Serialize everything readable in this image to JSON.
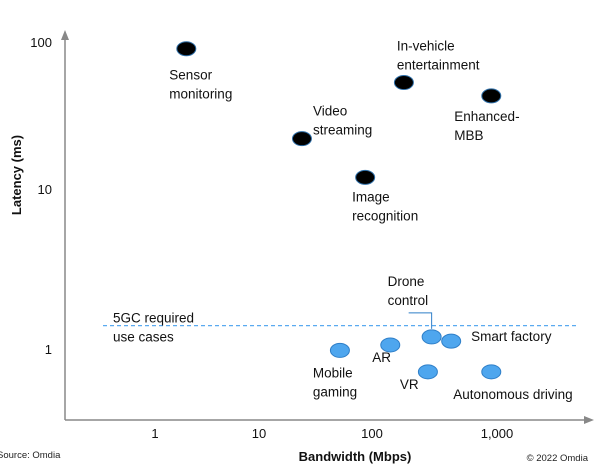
{
  "chart_data": {
    "type": "scatter",
    "xlabel": "Bandwidth (Mbps)",
    "ylabel": "Latency (ms)",
    "x_scale": "log",
    "y_scale": "log",
    "x_ticks": [
      1,
      10,
      100,
      1000
    ],
    "x_tick_labels": [
      "1",
      "10",
      "100",
      "1,000"
    ],
    "y_ticks": [
      1,
      10,
      100
    ],
    "y_tick_labels": [
      "1",
      "10",
      "100"
    ],
    "grid": false,
    "colors": {
      "high_latency": "#000000",
      "high_latency_outline": "#2f6fa8",
      "5gc": "#4ea6ee",
      "5gc_outline": "#2f7fc8",
      "threshold": "#5aaaf0"
    },
    "points": [
      {
        "label": [
          "Sensor",
          "monitoring"
        ],
        "x": 2,
        "y": 90,
        "group": "high_latency"
      },
      {
        "label": [
          "In-vehicle",
          "entertainment"
        ],
        "x": 180,
        "y": 53,
        "group": "high_latency"
      },
      {
        "label": [
          "Enhanced-",
          "MBB"
        ],
        "x": 900,
        "y": 43,
        "group": "high_latency"
      },
      {
        "label": [
          "Video",
          "streaming"
        ],
        "x": 24,
        "y": 22,
        "group": "high_latency"
      },
      {
        "label": [
          "Image",
          "recognition"
        ],
        "x": 87,
        "y": 12,
        "group": "high_latency"
      },
      {
        "label": [
          "Mobile",
          "gaming"
        ],
        "x": 52,
        "y": 0.98,
        "group": "5gc"
      },
      {
        "label": [
          "AR"
        ],
        "x": 140,
        "y": 1.06,
        "group": "5gc"
      },
      {
        "label": [
          "Drone",
          "control"
        ],
        "x": 300,
        "y": 1.19,
        "group": "5gc"
      },
      {
        "label": [
          "Smart factory"
        ],
        "x": 430,
        "y": 1.12,
        "group": "5gc"
      },
      {
        "label": [
          "VR"
        ],
        "x": 280,
        "y": 0.72,
        "group": "5gc"
      },
      {
        "label": [
          "Autonomous driving"
        ],
        "x": 900,
        "y": 0.72,
        "group": "5gc"
      }
    ],
    "threshold": {
      "y": 1.4,
      "label": [
        "5GC required",
        "use cases"
      ],
      "style": "dashed"
    }
  },
  "footer": {
    "source": "Source: Omdia",
    "copyright": "© 2022 Omdia"
  }
}
